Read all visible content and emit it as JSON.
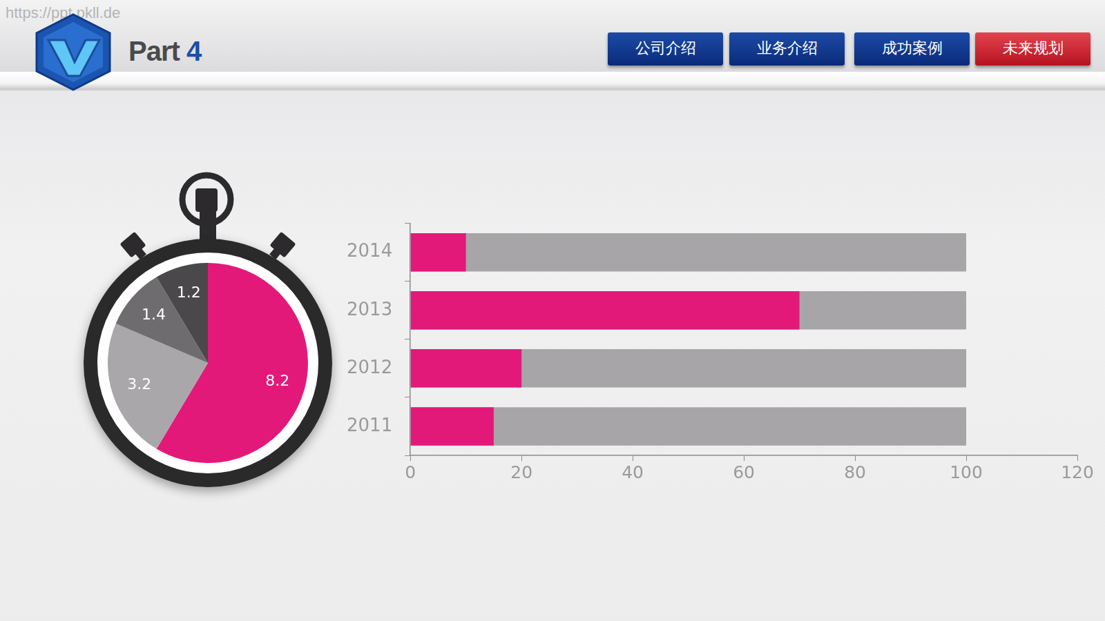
{
  "header": {
    "watermark": "https://ppt.pkll.de",
    "title": "Part 4",
    "nav": [
      "公司介绍",
      "业务介绍",
      "成功案例",
      "未来规划"
    ]
  },
  "chart_data": [
    {
      "type": "pie",
      "values": [
        8.2,
        3.2,
        1.4,
        1.2
      ],
      "colors": [
        "#e3197a",
        "#a9a7a9",
        "#6e6c6e",
        "#4a484a"
      ],
      "data_labels": true
    },
    {
      "type": "bar",
      "orientation": "horizontal",
      "categories": [
        "2011",
        "2012",
        "2013",
        "2014"
      ],
      "series": [
        {
          "color": "#e3197a",
          "values": [
            15,
            20,
            70,
            10
          ]
        },
        {
          "color": "#a7a5a7",
          "values": [
            100,
            100,
            100,
            100
          ]
        }
      ],
      "xlim": [
        0,
        120
      ],
      "xticks": [
        0,
        20,
        40,
        60,
        80,
        100,
        120
      ],
      "grid": false
    }
  ]
}
